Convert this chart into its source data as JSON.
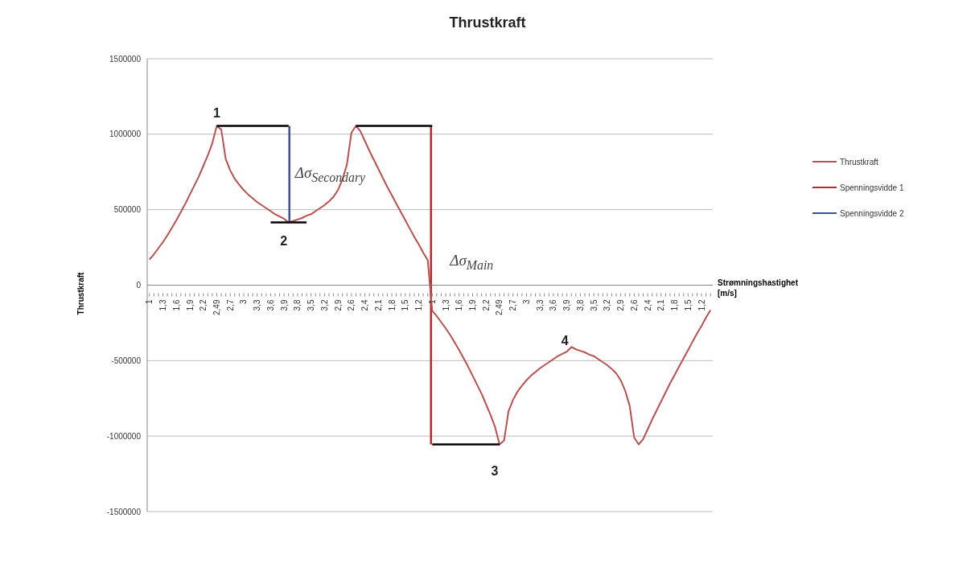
{
  "chart_data": {
    "type": "line",
    "title": "Thrustkraft",
    "ylabel": "Thrustkraft",
    "xlabel": "Strømningshastighet [m/s]",
    "categories": [
      "1",
      null,
      null,
      "1,3",
      null,
      null,
      "1,6",
      null,
      null,
      "1,9",
      null,
      null,
      "2,2",
      null,
      null,
      "2,49",
      null,
      null,
      "2,7",
      null,
      null,
      "3",
      null,
      null,
      "3,3",
      null,
      null,
      "3,6",
      null,
      null,
      "3,9",
      null,
      null,
      "3,8",
      null,
      null,
      "3,5",
      null,
      null,
      "3,2",
      null,
      null,
      "2,9",
      null,
      null,
      "2,6",
      null,
      null,
      "2,4",
      null,
      null,
      "2,1",
      null,
      null,
      "1,8",
      null,
      null,
      "1,5",
      null,
      null,
      "1,2",
      null,
      null,
      "1",
      null,
      null,
      "1,3",
      null,
      null,
      "1,6",
      null,
      null,
      "1,9",
      null,
      null,
      "2,2",
      null,
      null,
      "2,49",
      null,
      null,
      "2,7",
      null,
      null,
      "3",
      null,
      null,
      "3,3",
      null,
      null,
      "3,6",
      null,
      null,
      "3,9",
      null,
      null,
      "3,8",
      null,
      null,
      "3,5",
      null,
      null,
      "3,2",
      null,
      null,
      "2,9",
      null,
      null,
      "2,6",
      null,
      null,
      "2,4",
      null,
      null,
      "2,1",
      null,
      null,
      "1,8",
      null,
      null,
      "1,5",
      null,
      null,
      "1,2",
      null,
      null
    ],
    "series": [
      {
        "name": "Thrustkraft",
        "color": "#b5524f",
        "values": [
          170000,
          205000,
          245000,
          285000,
          330000,
          380000,
          430000,
          485000,
          540000,
          600000,
          660000,
          720000,
          790000,
          860000,
          940000,
          1055000,
          1030000,
          835000,
          760000,
          705000,
          665000,
          630000,
          600000,
          575000,
          550000,
          530000,
          510000,
          490000,
          470000,
          455000,
          440000,
          415000,
          425000,
          435000,
          445000,
          460000,
          470000,
          490000,
          510000,
          530000,
          555000,
          585000,
          630000,
          700000,
          800000,
          1010000,
          1055000,
          1020000,
          955000,
          890000,
          830000,
          770000,
          710000,
          650000,
          595000,
          540000,
          485000,
          430000,
          375000,
          320000,
          270000,
          215000,
          165000,
          -170000,
          -205000,
          -245000,
          -285000,
          -330000,
          -380000,
          -430000,
          -485000,
          -540000,
          -600000,
          -660000,
          -720000,
          -790000,
          -860000,
          -940000,
          -1055000,
          -1030000,
          -835000,
          -760000,
          -705000,
          -665000,
          -630000,
          -600000,
          -575000,
          -550000,
          -530000,
          -510000,
          -490000,
          -470000,
          -455000,
          -440000,
          -410000,
          -425000,
          -435000,
          -445000,
          -460000,
          -470000,
          -490000,
          -510000,
          -530000,
          -555000,
          -585000,
          -630000,
          -700000,
          -800000,
          -1010000,
          -1055000,
          -1020000,
          -955000,
          -890000,
          -830000,
          -770000,
          -710000,
          -650000,
          -595000,
          -540000,
          -485000,
          -430000,
          -375000,
          -320000,
          -270000,
          -215000,
          -165000
        ]
      },
      {
        "name": "Spenningsvidde 1",
        "type": "bar",
        "color": "#c0262d",
        "values": [
          null,
          null,
          null,
          null,
          null,
          null,
          null,
          null,
          null,
          null,
          null,
          null,
          null,
          null,
          null,
          null,
          null,
          null,
          null,
          null,
          null,
          null,
          null,
          null,
          null,
          null,
          null,
          null,
          null,
          null,
          null,
          null,
          null,
          null,
          null,
          null,
          null,
          null,
          null,
          null,
          null,
          null,
          null,
          null,
          null,
          null,
          null,
          null,
          null,
          null,
          null,
          null,
          null,
          null,
          null,
          null,
          null,
          null,
          null,
          null,
          null,
          null,
          null,
          2110000,
          null,
          null,
          null,
          null,
          null,
          null,
          null,
          null,
          null,
          null,
          null,
          null,
          null,
          null,
          null,
          null,
          null,
          null,
          null,
          null,
          null,
          null,
          null,
          null,
          null,
          null,
          null,
          null,
          null,
          null,
          null,
          null,
          null,
          null,
          null,
          null,
          null,
          null,
          null,
          null,
          null,
          null,
          null,
          null,
          null,
          null,
          null,
          null,
          null,
          null,
          null,
          null,
          null,
          null,
          null,
          null,
          null,
          null,
          null,
          null,
          null,
          null
        ],
        "base": [
          null,
          null,
          null,
          null,
          null,
          null,
          null,
          null,
          null,
          null,
          null,
          null,
          null,
          null,
          null,
          null,
          null,
          null,
          null,
          null,
          null,
          null,
          null,
          null,
          null,
          null,
          null,
          null,
          null,
          null,
          null,
          null,
          null,
          null,
          null,
          null,
          null,
          null,
          null,
          null,
          null,
          null,
          null,
          null,
          null,
          null,
          null,
          null,
          null,
          null,
          null,
          null,
          null,
          null,
          null,
          null,
          null,
          null,
          null,
          null,
          null,
          null,
          null,
          -1055000,
          null,
          null,
          null,
          null,
          null,
          null,
          null,
          null,
          null,
          null,
          null,
          null,
          null,
          null,
          null,
          null,
          null,
          null,
          null,
          null,
          null,
          null,
          null,
          null,
          null,
          null,
          null,
          null,
          null,
          null,
          null,
          null,
          null,
          null,
          null,
          null,
          null,
          null,
          null,
          null,
          null,
          null,
          null,
          null,
          null,
          null,
          null,
          null,
          null,
          null,
          null,
          null,
          null,
          null,
          null,
          null,
          null,
          null,
          null,
          null,
          null,
          null
        ]
      },
      {
        "name": "Spenningsvidde 2",
        "type": "bar",
        "color": "#3d4f9b",
        "values": [
          null,
          null,
          null,
          null,
          null,
          null,
          null,
          null,
          null,
          null,
          null,
          null,
          null,
          null,
          null,
          null,
          null,
          null,
          null,
          null,
          null,
          null,
          null,
          null,
          null,
          null,
          null,
          null,
          null,
          null,
          null,
          640000,
          null,
          null,
          null,
          null,
          null,
          null,
          null,
          null,
          null,
          null,
          null,
          null,
          null,
          null,
          null,
          null,
          null,
          null,
          null,
          null,
          null,
          null,
          null,
          null,
          null,
          null,
          null,
          null,
          null,
          null,
          null,
          null,
          null,
          null,
          null,
          null,
          null,
          null,
          null,
          null,
          null,
          null,
          null,
          null,
          null,
          null,
          null,
          null,
          null,
          null,
          null,
          null,
          null,
          null,
          null,
          null,
          null,
          null,
          null,
          null,
          null,
          null,
          null,
          null,
          null,
          null,
          null,
          null,
          null,
          null,
          null,
          null,
          null,
          null,
          null,
          null,
          null,
          null,
          null,
          null,
          null,
          null,
          null,
          null,
          null,
          null,
          null,
          null,
          null,
          null,
          null,
          null,
          null,
          null
        ],
        "base": [
          null,
          null,
          null,
          null,
          null,
          null,
          null,
          null,
          null,
          null,
          null,
          null,
          null,
          null,
          null,
          null,
          null,
          null,
          null,
          null,
          null,
          null,
          null,
          null,
          null,
          null,
          null,
          null,
          null,
          null,
          null,
          415000,
          null,
          null,
          null,
          null,
          null,
          null,
          null,
          null,
          null,
          null,
          null,
          null,
          null,
          null,
          null,
          null,
          null,
          null,
          null,
          null,
          null,
          null,
          null,
          null,
          null,
          null,
          null,
          null,
          null,
          null,
          null,
          null,
          null,
          null,
          null,
          null,
          null,
          null,
          null,
          null,
          null,
          null,
          null,
          null,
          null,
          null,
          null,
          null,
          null,
          null,
          null,
          null,
          null,
          null,
          null,
          null,
          null,
          null,
          null,
          null,
          null,
          null,
          null,
          null,
          null,
          null,
          null,
          null,
          null,
          null,
          null,
          null,
          null,
          null,
          null,
          null,
          null,
          null,
          null,
          null,
          null,
          null,
          null,
          null,
          null,
          null,
          null,
          null,
          null,
          null,
          null,
          null,
          null,
          null
        ]
      },
      {
        "color": "#000000",
        "values": [
          null,
          null,
          null,
          null,
          null,
          null,
          null,
          null,
          null,
          null,
          null,
          null,
          null,
          null,
          null,
          1055000,
          1055000,
          1055000,
          1055000,
          1055000,
          1055000,
          1055000,
          1055000,
          1055000,
          1055000,
          1055000,
          1055000,
          1055000,
          1055000,
          1055000,
          1055000,
          1055000,
          null,
          null,
          null,
          null,
          null,
          null,
          null,
          null,
          null,
          null,
          null,
          null,
          null,
          null,
          null,
          null,
          null,
          null,
          null,
          null,
          null,
          null,
          null,
          null,
          null,
          null,
          null,
          null,
          null,
          null,
          null,
          null,
          null,
          null,
          null,
          null,
          null,
          null,
          null,
          null,
          null,
          null,
          null,
          null,
          null,
          null,
          null,
          null,
          null,
          null,
          null,
          null,
          null,
          null,
          null,
          null,
          null,
          null,
          null,
          null,
          null,
          null,
          null,
          null,
          null,
          null,
          null,
          null,
          null,
          null,
          null,
          null,
          null,
          null,
          null,
          null,
          null,
          null,
          null,
          null,
          null,
          null,
          null,
          null,
          null,
          null,
          null,
          null,
          null,
          null,
          null,
          null,
          null,
          null
        ]
      },
      {
        "color": "#000000",
        "values": [
          null,
          null,
          null,
          null,
          null,
          null,
          null,
          null,
          null,
          null,
          null,
          null,
          null,
          null,
          null,
          null,
          null,
          null,
          null,
          null,
          null,
          null,
          null,
          null,
          null,
          null,
          null,
          null,
          null,
          null,
          null,
          null,
          null,
          null,
          null,
          null,
          null,
          null,
          null,
          null,
          null,
          null,
          null,
          null,
          null,
          null,
          1055000,
          1055000,
          1055000,
          1055000,
          1055000,
          1055000,
          1055000,
          1055000,
          1055000,
          1055000,
          1055000,
          1055000,
          1055000,
          1055000,
          1055000,
          1055000,
          1055000,
          1055000,
          null,
          null,
          null,
          null,
          null,
          null,
          null,
          null,
          null,
          null,
          null,
          null,
          null,
          null,
          null,
          null,
          null,
          null,
          null,
          null,
          null,
          null,
          null,
          null,
          null,
          null,
          null,
          null,
          null,
          null,
          null,
          null,
          null,
          null,
          null,
          null,
          null,
          null,
          null,
          null,
          null,
          null,
          null,
          null,
          null,
          null,
          null,
          null,
          null,
          null,
          null,
          null,
          null,
          null,
          null,
          null,
          null,
          null,
          null,
          null,
          null,
          null
        ]
      },
      {
        "color": "#000000",
        "values": [
          null,
          null,
          null,
          null,
          null,
          null,
          null,
          null,
          null,
          null,
          null,
          null,
          null,
          null,
          null,
          null,
          null,
          null,
          null,
          null,
          null,
          null,
          null,
          null,
          null,
          null,
          null,
          null,
          null,
          null,
          null,
          null,
          null,
          null,
          null,
          null,
          null,
          null,
          null,
          null,
          null,
          null,
          null,
          null,
          null,
          null,
          null,
          null,
          null,
          null,
          null,
          null,
          null,
          null,
          null,
          null,
          null,
          null,
          null,
          null,
          null,
          null,
          null,
          -1055000,
          -1055000,
          -1055000,
          -1055000,
          -1055000,
          -1055000,
          -1055000,
          -1055000,
          -1055000,
          -1055000,
          -1055000,
          -1055000,
          -1055000,
          -1055000,
          -1055000,
          -1055000,
          null,
          null,
          null,
          null,
          null,
          null,
          null,
          null,
          null,
          null,
          null,
          null,
          null,
          null,
          null,
          null,
          null,
          null,
          null,
          null,
          null,
          null,
          null,
          null,
          null,
          null,
          null,
          null,
          null,
          null,
          null,
          null,
          null,
          null,
          null,
          null,
          null,
          null,
          null,
          null,
          null,
          null,
          null,
          null,
          null,
          null,
          null
        ]
      },
      {
        "color": "#000000",
        "values": [
          null,
          null,
          null,
          null,
          null,
          null,
          null,
          null,
          null,
          null,
          null,
          null,
          null,
          null,
          null,
          null,
          null,
          null,
          null,
          null,
          null,
          null,
          null,
          null,
          null,
          null,
          null,
          415000,
          415000,
          415000,
          415000,
          415000,
          415000,
          415000,
          415000,
          415000,
          null,
          null,
          null,
          null,
          null,
          null,
          null,
          null,
          null,
          null,
          null,
          null,
          null,
          null,
          null,
          null,
          null,
          null,
          null,
          null,
          null,
          null,
          null,
          null,
          null,
          null,
          null,
          null,
          null,
          null,
          null,
          null,
          null,
          null,
          null,
          null,
          null,
          null,
          null,
          null,
          null,
          null,
          null,
          null,
          null,
          null,
          null,
          null,
          null,
          null,
          null,
          null,
          null,
          null,
          null,
          null,
          null,
          null,
          null,
          null,
          null,
          null,
          null,
          null,
          null,
          null,
          null,
          null,
          null,
          null,
          null,
          null,
          null,
          null,
          null,
          null,
          null,
          null,
          null,
          null,
          null,
          null,
          null,
          null,
          null,
          null,
          null,
          null,
          null,
          null
        ]
      }
    ],
    "annotations": [
      "1",
      "2",
      "3",
      "4",
      "Δσ$_{Secondary}$",
      "Δσ$_{Main}$"
    ],
    "ylim": [
      -1500000,
      1500000
    ],
    "yticks": [
      -1500000,
      -1000000,
      -500000,
      0,
      500000,
      1000000,
      1500000
    ],
    "grid": "y",
    "legend": "right",
    "marker": "none",
    "line_style": "solid"
  }
}
